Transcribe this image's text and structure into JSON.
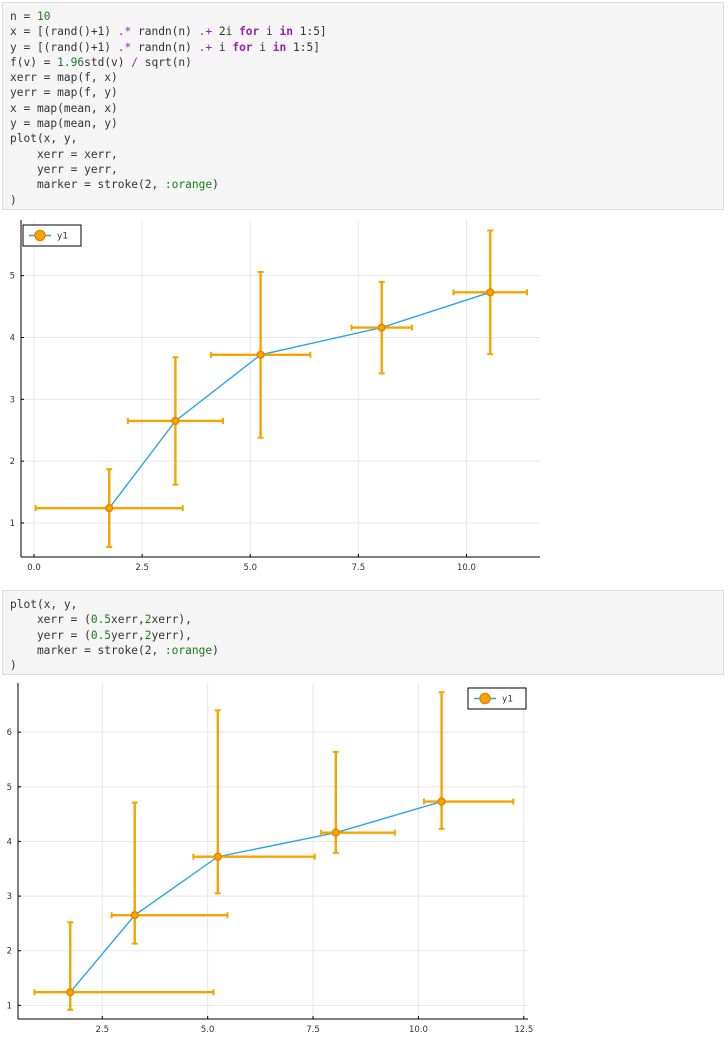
{
  "cells": [
    {
      "type": "code",
      "lines": [
        [
          {
            "t": "n = ",
            "c": "plain"
          },
          {
            "t": "10",
            "c": "num"
          }
        ],
        [
          {
            "t": "x = [(rand()+1) ",
            "c": "plain"
          },
          {
            "t": ".*",
            "c": "op"
          },
          {
            "t": " randn(n) ",
            "c": "plain"
          },
          {
            "t": ".+",
            "c": "op"
          },
          {
            "t": " 2i ",
            "c": "plain"
          },
          {
            "t": "for",
            "c": "kw"
          },
          {
            "t": " i ",
            "c": "plain"
          },
          {
            "t": "in",
            "c": "kw"
          },
          {
            "t": " 1:5]",
            "c": "plain"
          }
        ],
        [
          {
            "t": "y = [(rand()+1) ",
            "c": "plain"
          },
          {
            "t": ".*",
            "c": "op"
          },
          {
            "t": " randn(n) ",
            "c": "plain"
          },
          {
            "t": ".+",
            "c": "op"
          },
          {
            "t": " i ",
            "c": "plain"
          },
          {
            "t": "for",
            "c": "kw"
          },
          {
            "t": " i ",
            "c": "plain"
          },
          {
            "t": "in",
            "c": "kw"
          },
          {
            "t": " 1:5]",
            "c": "plain"
          }
        ],
        [
          {
            "t": "f(v) = ",
            "c": "plain"
          },
          {
            "t": "1.96",
            "c": "num"
          },
          {
            "t": "std(v) ",
            "c": "plain"
          },
          {
            "t": "/",
            "c": "op"
          },
          {
            "t": " sqrt(n)",
            "c": "plain"
          }
        ],
        [
          {
            "t": "xerr = map(f, x)",
            "c": "plain"
          }
        ],
        [
          {
            "t": "yerr = map(f, y)",
            "c": "plain"
          }
        ],
        [
          {
            "t": "x = map(mean, x)",
            "c": "plain"
          }
        ],
        [
          {
            "t": "y = map(mean, y)",
            "c": "plain"
          }
        ],
        [
          {
            "t": "plot(x, y,",
            "c": "plain"
          }
        ],
        [
          {
            "t": "    xerr = xerr,",
            "c": "plain"
          }
        ],
        [
          {
            "t": "    yerr = yerr,",
            "c": "plain"
          }
        ],
        [
          {
            "t": "    marker = stroke(2, ",
            "c": "plain"
          },
          {
            "t": ":orange",
            "c": "str"
          },
          {
            "t": ")",
            "c": "plain"
          }
        ],
        [
          {
            "t": ")",
            "c": "plain"
          }
        ]
      ]
    },
    {
      "type": "code",
      "lines": [
        [
          {
            "t": "plot(x, y,",
            "c": "plain"
          }
        ],
        [
          {
            "t": "    xerr = (",
            "c": "plain"
          },
          {
            "t": "0.5",
            "c": "num"
          },
          {
            "t": "xerr,",
            "c": "plain"
          },
          {
            "t": "2",
            "c": "num"
          },
          {
            "t": "xerr),",
            "c": "plain"
          }
        ],
        [
          {
            "t": "    yerr = (",
            "c": "plain"
          },
          {
            "t": "0.5",
            "c": "num"
          },
          {
            "t": "yerr,",
            "c": "plain"
          },
          {
            "t": "2",
            "c": "num"
          },
          {
            "t": "yerr),",
            "c": "plain"
          }
        ],
        [
          {
            "t": "    marker = stroke(2, ",
            "c": "plain"
          },
          {
            "t": ":orange",
            "c": "str"
          },
          {
            "t": ")",
            "c": "plain"
          }
        ],
        [
          {
            "t": ")",
            "c": "plain"
          }
        ]
      ]
    }
  ],
  "colors": {
    "series_line": "#2aa6e8",
    "errorbar": "#f5a400",
    "marker_fill": "#f5a400",
    "marker_stroke": "#e08a00",
    "grid": "#e8e8e8",
    "axis": "#000000"
  },
  "chart_data": [
    {
      "type": "scatter",
      "title": "",
      "xlabel": "",
      "ylabel": "",
      "xlim": [
        -0.3,
        11.7
      ],
      "ylim": [
        0.45,
        5.9
      ],
      "xticks": [
        0.0,
        2.5,
        5.0,
        7.5,
        10.0
      ],
      "xtick_labels": [
        "0.0",
        "2.5",
        "5.0",
        "7.5",
        "10.0"
      ],
      "yticks": [
        1,
        2,
        3,
        4,
        5
      ],
      "ytick_labels": [
        "1",
        "2",
        "3",
        "4",
        "5"
      ],
      "grid": true,
      "legend_position": "top-left",
      "series": [
        {
          "name": "y1",
          "x": [
            1.74,
            3.27,
            5.24,
            8.04,
            10.55
          ],
          "y": [
            1.24,
            2.65,
            3.72,
            4.16,
            4.73
          ],
          "xerr_low": [
            1.7,
            1.1,
            1.15,
            0.7,
            0.85
          ],
          "xerr_high": [
            1.7,
            1.1,
            1.15,
            0.7,
            0.85
          ],
          "yerr_low": [
            0.63,
            1.03,
            1.34,
            0.74,
            1.0
          ],
          "yerr_high": [
            0.63,
            1.03,
            1.34,
            0.74,
            1.0
          ]
        }
      ]
    },
    {
      "type": "scatter",
      "title": "",
      "xlabel": "",
      "ylabel": "",
      "xlim": [
        0.5,
        12.6
      ],
      "ylim": [
        0.75,
        6.9
      ],
      "xticks": [
        2.5,
        5.0,
        7.5,
        10.0,
        12.5
      ],
      "xtick_labels": [
        "2.5",
        "5.0",
        "7.5",
        "10.0",
        "12.5"
      ],
      "yticks": [
        1,
        2,
        3,
        4,
        5,
        6
      ],
      "ytick_labels": [
        "1",
        "2",
        "3",
        "4",
        "5",
        "6"
      ],
      "grid": true,
      "legend_position": "top-right",
      "series": [
        {
          "name": "y1",
          "x": [
            1.74,
            3.27,
            5.24,
            8.04,
            10.55
          ],
          "y": [
            1.24,
            2.65,
            3.72,
            4.16,
            4.73
          ],
          "xerr_low": [
            0.85,
            0.55,
            0.58,
            0.35,
            0.42
          ],
          "xerr_high": [
            3.4,
            2.2,
            2.3,
            1.4,
            1.7
          ],
          "yerr_low": [
            0.32,
            0.52,
            0.67,
            0.37,
            0.5
          ],
          "yerr_high": [
            1.28,
            2.06,
            2.68,
            1.48,
            2.0
          ]
        }
      ]
    }
  ]
}
